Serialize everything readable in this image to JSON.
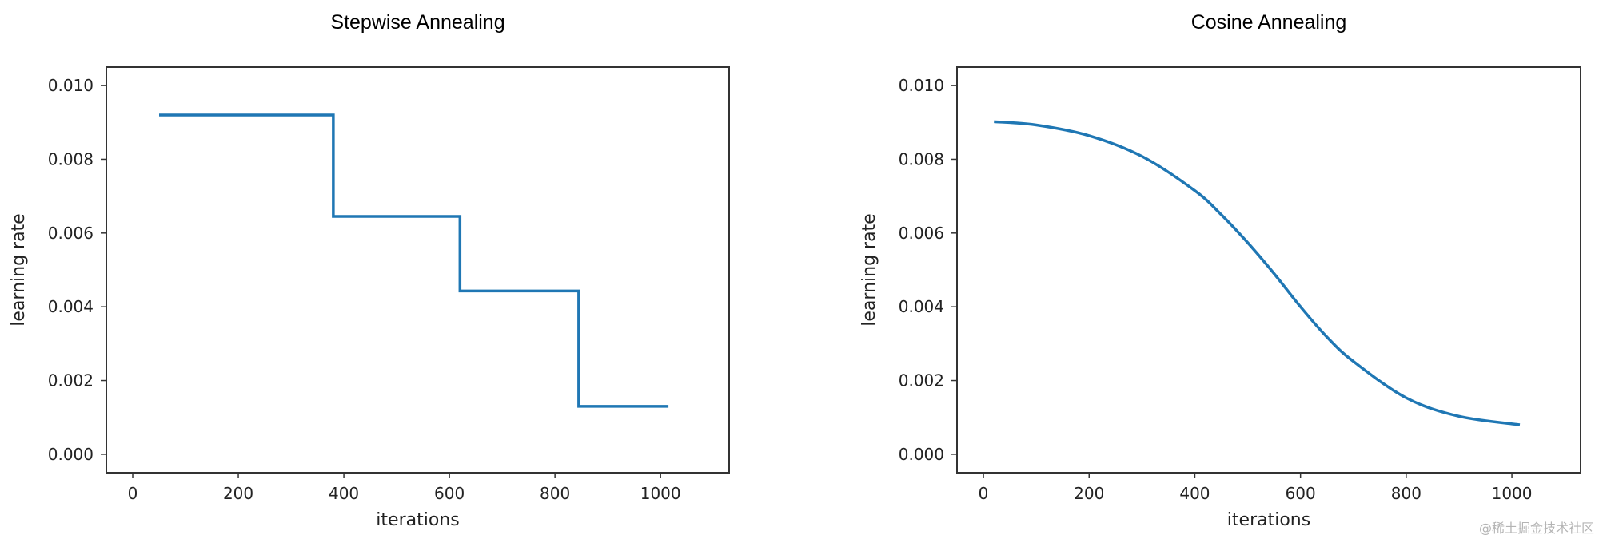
{
  "chart_data": [
    {
      "type": "line",
      "title": "Stepwise Annealing",
      "xlabel": "iterations",
      "ylabel": "learning rate",
      "xlim": [
        -50,
        1130
      ],
      "ylim": [
        -0.0005,
        0.0105
      ],
      "xticks": [
        0,
        200,
        400,
        600,
        800,
        1000
      ],
      "xtick_labels": [
        "0",
        "200",
        "400",
        "600",
        "800",
        "1000"
      ],
      "yticks": [
        0.0,
        0.002,
        0.004,
        0.006,
        0.008,
        0.01
      ],
      "ytick_labels": [
        "0.000",
        "0.002",
        "0.004",
        "0.006",
        "0.008",
        "0.010"
      ],
      "grid": false,
      "series": [
        {
          "color": "#1f77b4",
          "x": [
            50,
            380,
            380,
            620,
            620,
            845,
            845,
            1015
          ],
          "y": [
            0.0092,
            0.0092,
            0.00645,
            0.00645,
            0.00443,
            0.00443,
            0.0013,
            0.0013
          ]
        }
      ]
    },
    {
      "type": "line",
      "title": "Cosine Annealing",
      "xlabel": "iterations",
      "ylabel": "learning rate",
      "xlim": [
        -50,
        1130
      ],
      "ylim": [
        -0.0005,
        0.0105
      ],
      "xticks": [
        0,
        200,
        400,
        600,
        800,
        1000
      ],
      "xtick_labels": [
        "0",
        "200",
        "400",
        "600",
        "800",
        "1000"
      ],
      "yticks": [
        0.0,
        0.002,
        0.004,
        0.006,
        0.008,
        0.01
      ],
      "ytick_labels": [
        "0.000",
        "0.002",
        "0.004",
        "0.006",
        "0.008",
        "0.010"
      ],
      "grid": false,
      "series": [
        {
          "color": "#1f77b4",
          "x": [
            20,
            100,
            200,
            300,
            400,
            450,
            500,
            550,
            600,
            650,
            700,
            800,
            900,
            1015
          ],
          "y": [
            0.00902,
            0.00893,
            0.00864,
            0.00808,
            0.00715,
            0.0065,
            0.00574,
            0.0049,
            0.004,
            0.00318,
            0.00252,
            0.00153,
            0.00103,
            0.0008
          ]
        }
      ]
    }
  ],
  "watermark": "@稀土掘金技术社区"
}
